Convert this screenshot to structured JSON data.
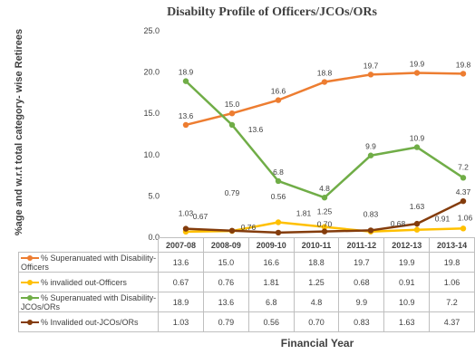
{
  "chart_data": {
    "type": "line",
    "title": "Disabilty Profile of Officers/JCOs/ORs",
    "xlabel": "Financial Year",
    "ylabel": "%age and w.r.t total category- wise Retirees",
    "categories": [
      "2007-08",
      "2008-09",
      "2009-10",
      "2010-11",
      "2011-12",
      "2012-13",
      "2013-14"
    ],
    "ylim": [
      0,
      25
    ],
    "yticks": [
      "0.0",
      "5.0",
      "10.0",
      "15.0",
      "20.0",
      "25.0"
    ],
    "grid": false,
    "legend": "data-table",
    "series": [
      {
        "name": "% Superanuated with Disability-Officers",
        "color": "#ED7D31",
        "values": [
          13.6,
          15.0,
          16.6,
          18.8,
          19.7,
          19.9,
          19.8
        ],
        "labels": [
          "13.6",
          "15.0",
          "16.6",
          "18.8",
          "19.7",
          "19.9",
          "19.8"
        ]
      },
      {
        "name": "% invalided out-Officers",
        "color": "#FFC000",
        "values": [
          0.67,
          0.76,
          1.81,
          1.25,
          0.68,
          0.91,
          1.06
        ],
        "labels": [
          "0.67",
          "0.76",
          "1.81",
          "1.25",
          "0.68",
          "0.91",
          "1.06"
        ]
      },
      {
        "name": "% Superanuated with Disability-JCOs/ORs",
        "color": "#70AD47",
        "values": [
          18.9,
          13.6,
          6.8,
          4.8,
          9.9,
          10.9,
          7.2
        ],
        "labels": [
          "18.9",
          "13.6",
          "6.8",
          "4.8",
          "9.9",
          "10.9",
          "7.2"
        ]
      },
      {
        "name": "% Invalided out-JCOs/ORs",
        "color": "#843C0C",
        "values": [
          1.03,
          0.79,
          0.56,
          0.7,
          0.83,
          1.63,
          4.37
        ],
        "labels": [
          "1.03",
          "0.79",
          "0.56",
          "0.70",
          "0.83",
          "1.63",
          "4.37"
        ]
      }
    ]
  }
}
